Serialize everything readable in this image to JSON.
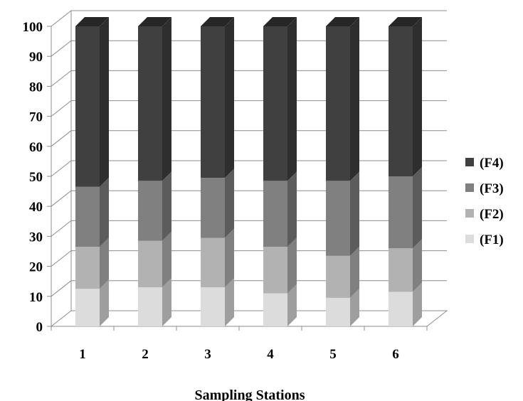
{
  "chart_data": {
    "type": "bar",
    "stacked": true,
    "percent_scale": true,
    "three_d": true,
    "categories": [
      "1",
      "2",
      "3",
      "4",
      "5",
      "6"
    ],
    "series": [
      {
        "name": "(F1)",
        "values": [
          12.5,
          13,
          13,
          11,
          9.5,
          11.5
        ],
        "color": "#dcdcdc"
      },
      {
        "name": "(F2)",
        "values": [
          14,
          15.5,
          16.5,
          15.5,
          14,
          14.5
        ],
        "color": "#b2b2b2"
      },
      {
        "name": "(F3)",
        "values": [
          20,
          20,
          20,
          22,
          25,
          24
        ],
        "color": "#808080"
      },
      {
        "name": "(F4)",
        "values": [
          53.5,
          51.5,
          50.5,
          51.5,
          51.5,
          50
        ],
        "color": "#404040"
      }
    ],
    "xlabel": "Sampling Stations",
    "ylabel": "",
    "ylim": [
      0,
      100
    ],
    "yticks": [
      "0",
      "10",
      "20",
      "30",
      "40",
      "50",
      "60",
      "70",
      "80",
      "90",
      "100"
    ],
    "grid": true,
    "legend_position": "right"
  }
}
